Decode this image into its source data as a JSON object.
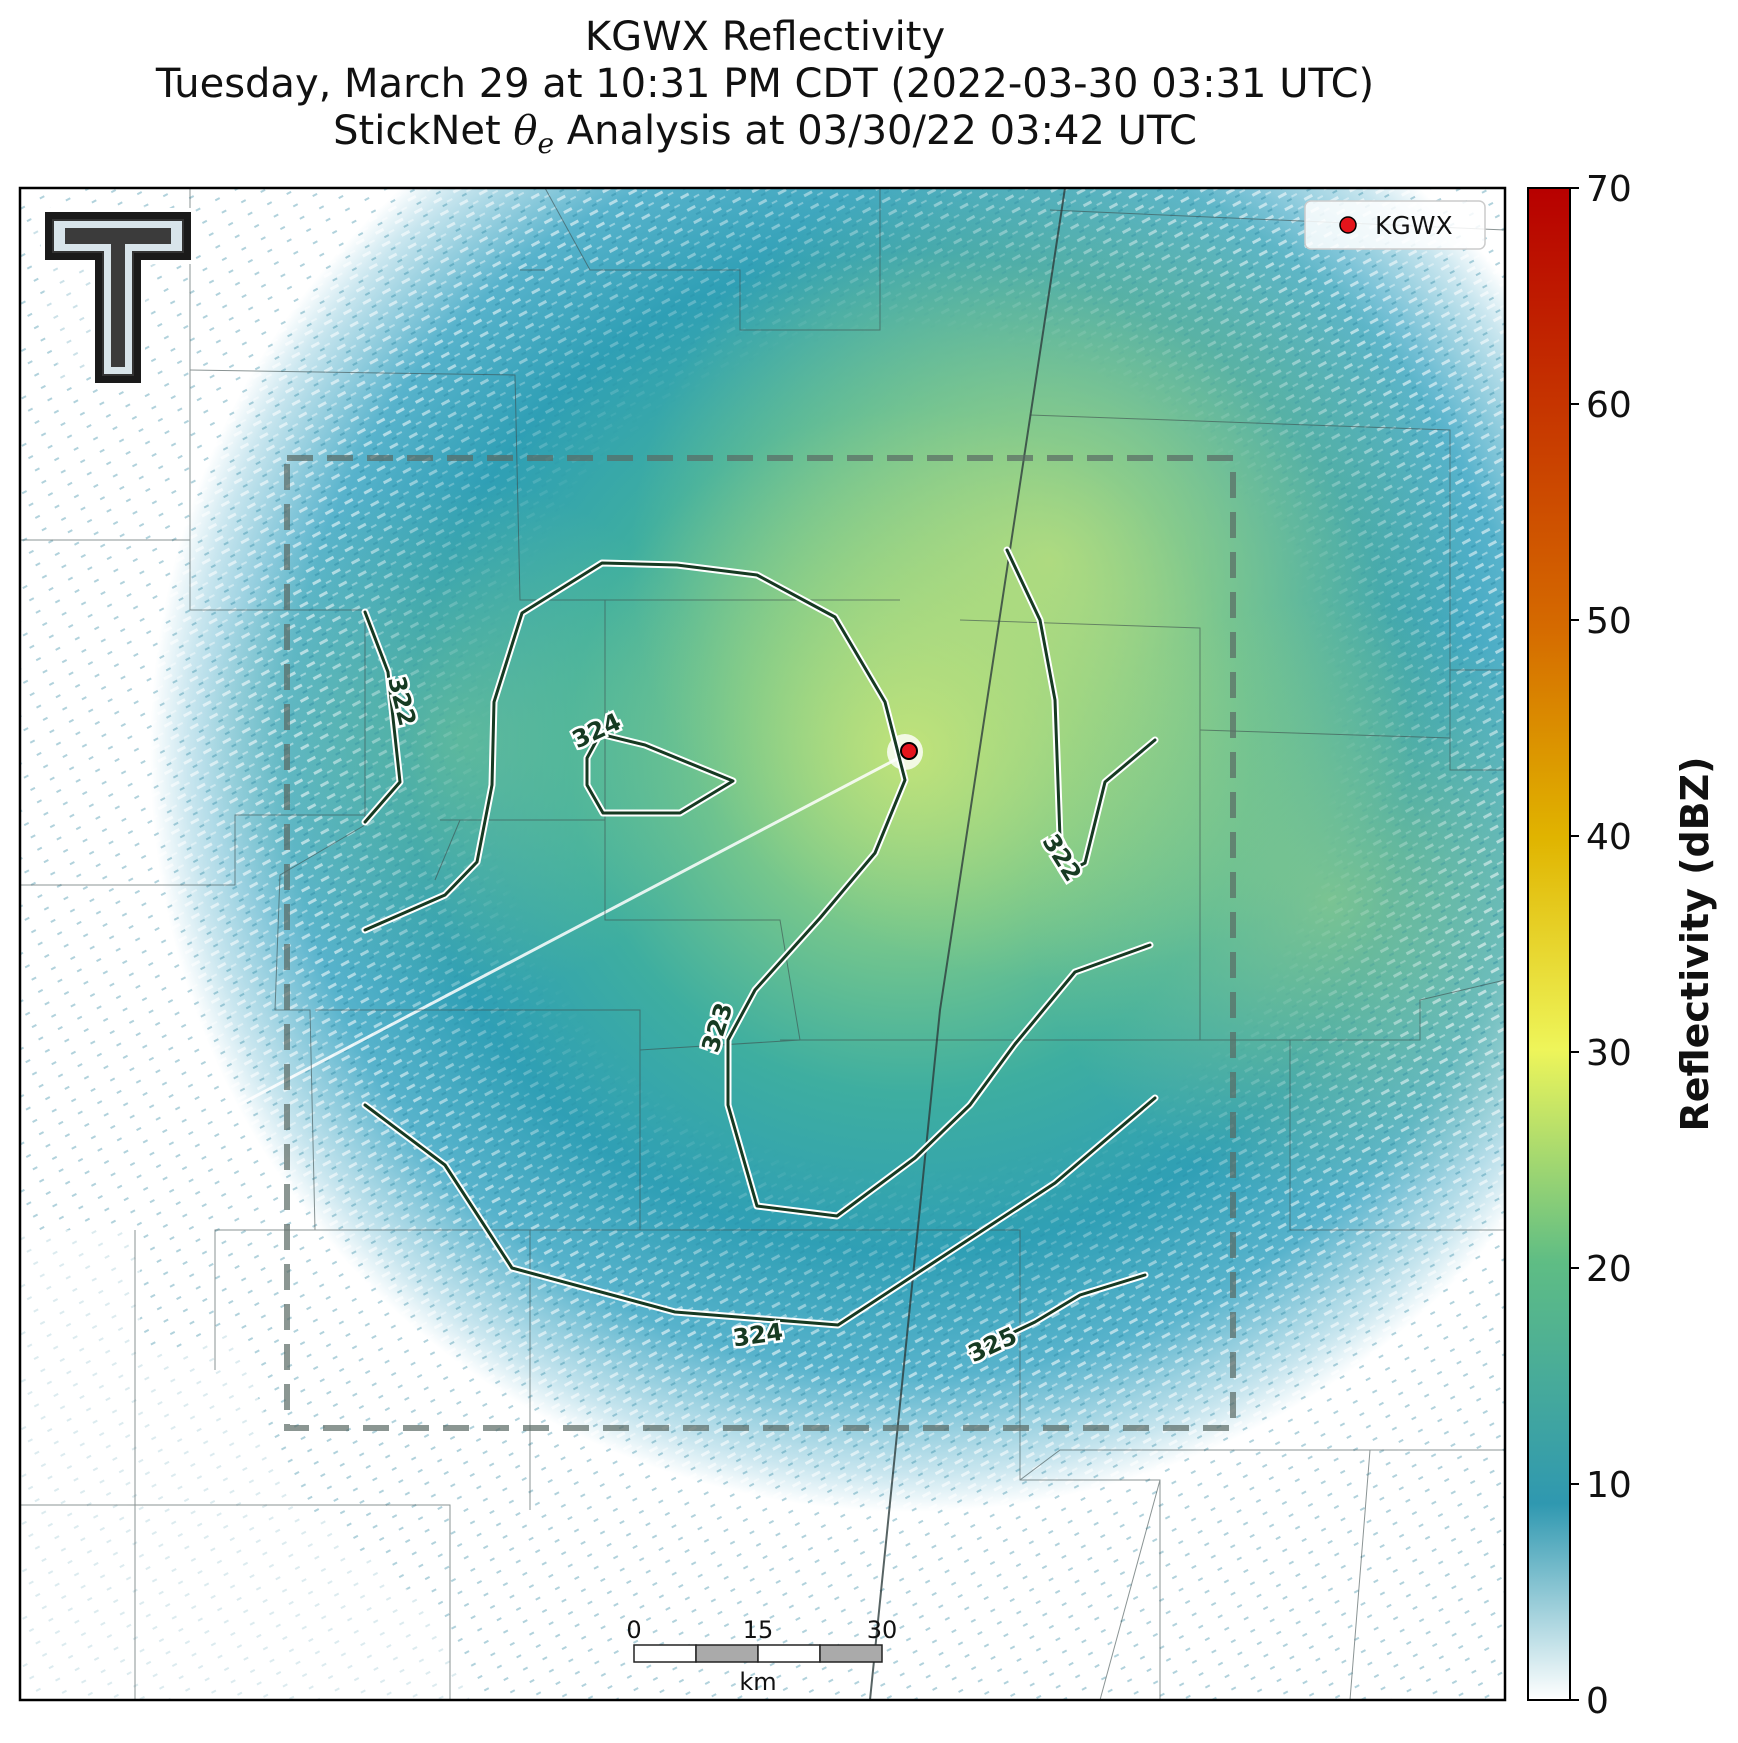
{
  "title": {
    "line1": "KGWX Reflectivity",
    "line2": "Tuesday, March 29 at 10:31 PM CDT (2022-03-30 03:31 UTC)",
    "line3_prefix": "StickNet ",
    "line3_symbol": "θ",
    "line3_sub": "e",
    "line3_suffix": " Analysis at 03/30/22 03:42 UTC"
  },
  "legend": {
    "marker_label": "KGWX",
    "marker_color": "#e4141b"
  },
  "colorbar": {
    "label": "Reflectivity (dBZ)",
    "ticks": [
      "0",
      "10",
      "20",
      "30",
      "40",
      "50",
      "60",
      "70"
    ],
    "range": [
      0,
      70
    ],
    "stops": [
      "#ffffff",
      "#2f98b0",
      "#5fbd84",
      "#eef55a",
      "#e0b400",
      "#d56a00",
      "#b70000"
    ]
  },
  "scalebar": {
    "ticks": [
      "0",
      "15",
      "30"
    ],
    "unit": "km"
  },
  "contour_labels": [
    "322",
    "324",
    "322",
    "323",
    "324",
    "325"
  ],
  "colors": {
    "contour": "#163a22",
    "contour_halo": "#ffffff",
    "county_line": "#3d4d4d",
    "analysis_box": "#5a6a64"
  }
}
